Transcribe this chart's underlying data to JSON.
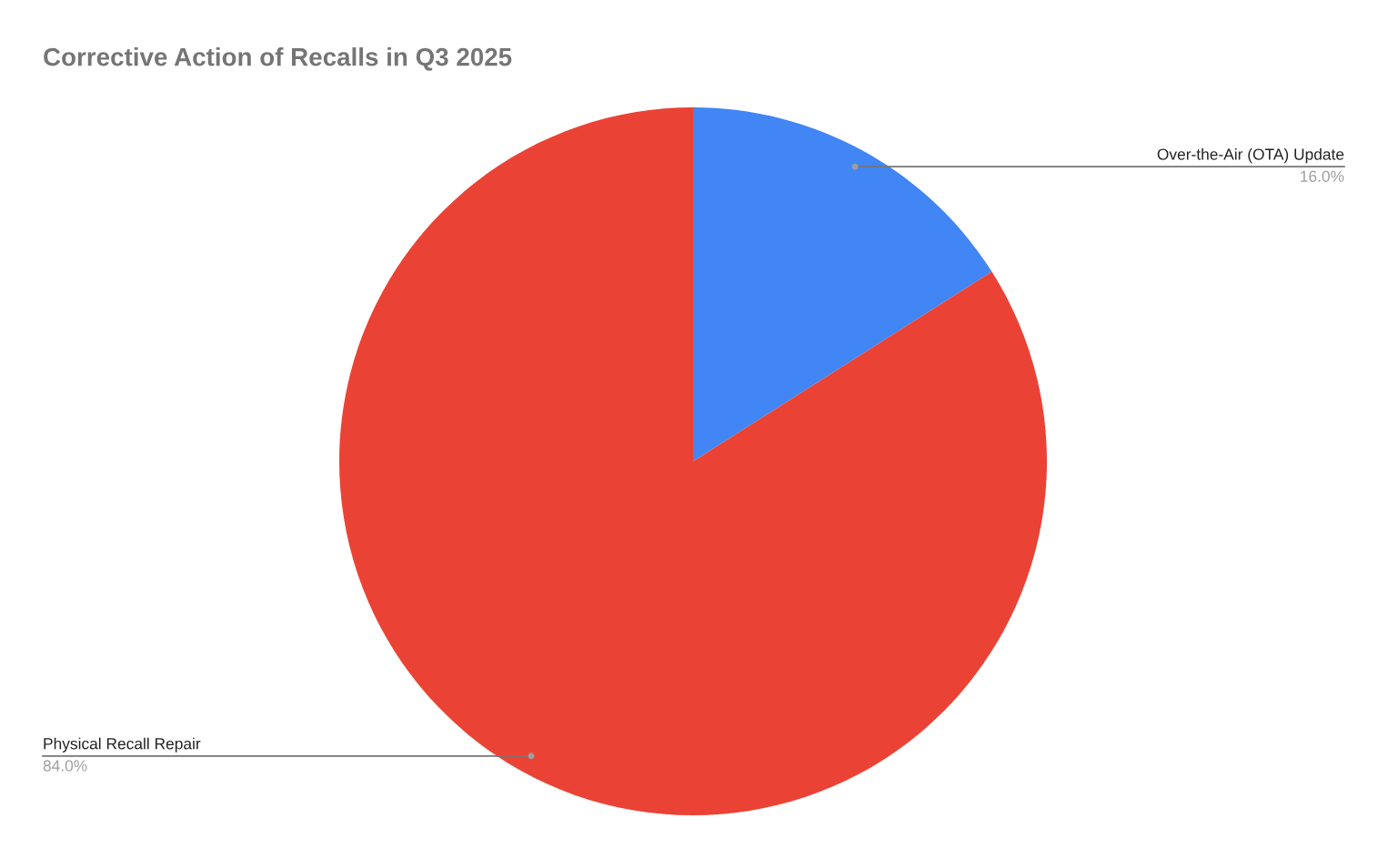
{
  "chart_data": {
    "type": "pie",
    "title": "Corrective Action of Recalls in Q3 2025",
    "categories": [
      "Over-the-Air (OTA) Update",
      "Physical Recall Repair"
    ],
    "values": [
      16.0,
      84.0
    ],
    "colors": [
      "#4285f4",
      "#ea4335"
    ],
    "value_labels": [
      "16.0%",
      "84.0%"
    ],
    "legend": false
  }
}
